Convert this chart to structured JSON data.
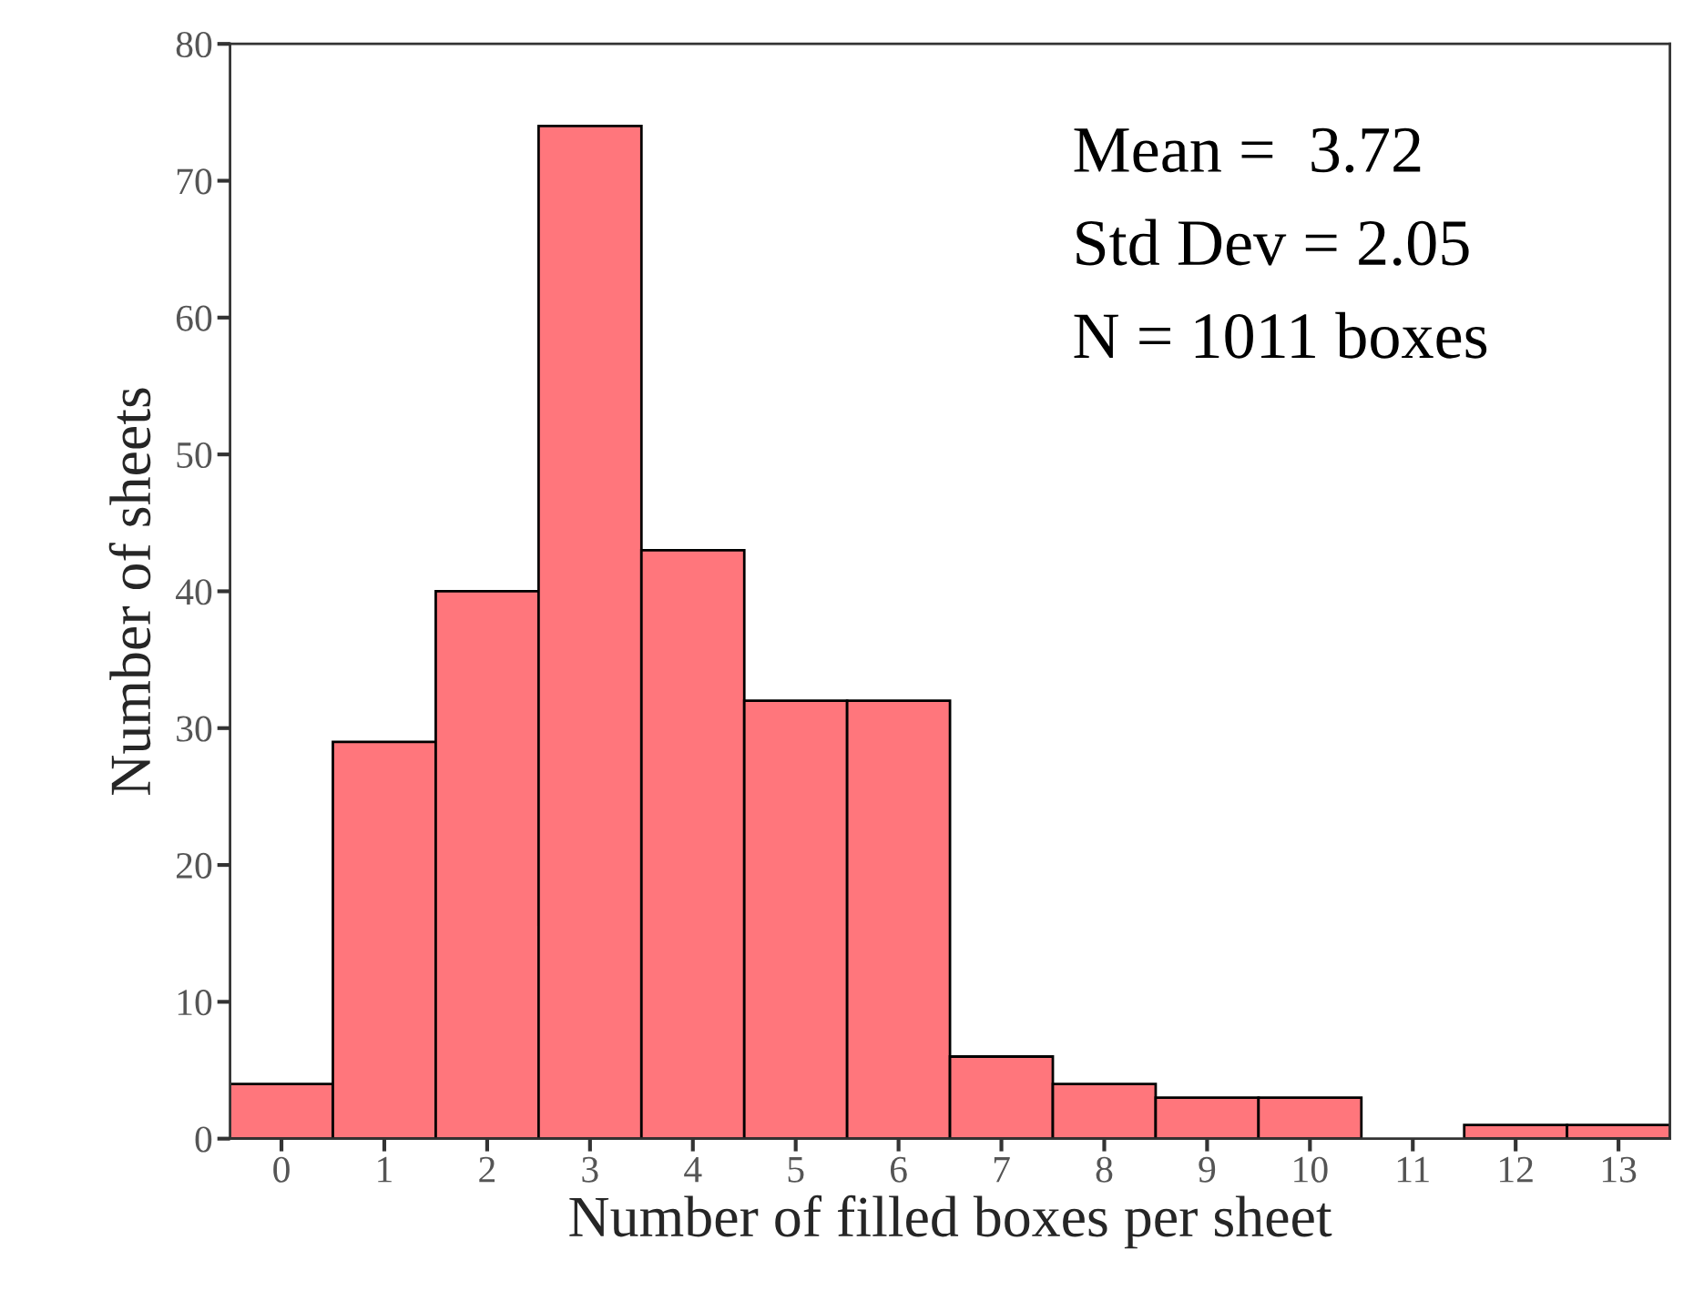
{
  "chart_data": {
    "type": "histogram",
    "xlabel": "Number of filled boxes per sheet",
    "ylabel": "Number of sheets",
    "bins": [
      -0.5,
      0.5,
      1.5,
      2.5,
      3.5,
      4.5,
      5.5,
      6.5,
      7.5,
      8.5,
      9.5,
      10.5,
      11.5,
      12.5,
      13.5
    ],
    "values": [
      4,
      29,
      40,
      74,
      43,
      32,
      32,
      6,
      4,
      3,
      3,
      0,
      1,
      1
    ],
    "color": "#ff767c",
    "xlim": [
      -0.5,
      13.5
    ],
    "xticks": [
      0,
      1,
      2,
      3,
      4,
      5,
      6,
      7,
      8,
      9,
      10,
      11,
      12,
      13
    ],
    "ylim": [
      0,
      80
    ],
    "yticks": [
      0,
      10,
      20,
      30,
      40,
      50,
      60,
      70,
      80
    ],
    "grid": false,
    "annotations": [
      "Mean =  3.72",
      "Std Dev = 2.05",
      "N = 1011 boxes"
    ]
  }
}
